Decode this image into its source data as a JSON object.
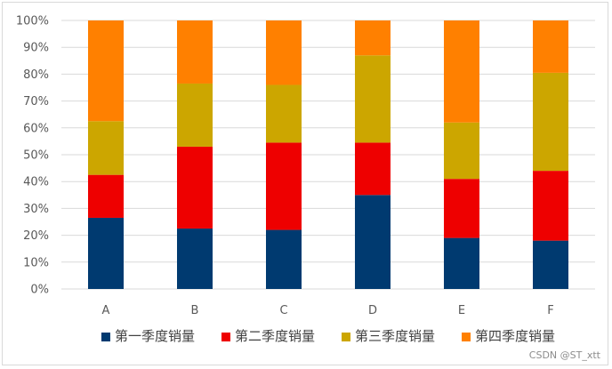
{
  "chart_data": {
    "type": "bar",
    "stacking": "percent",
    "categories": [
      "A",
      "B",
      "C",
      "D",
      "E",
      "F"
    ],
    "series": [
      {
        "name": "第一季度销量",
        "color": "#003a70",
        "values": [
          26.5,
          22.5,
          22.0,
          35.0,
          19.0,
          18.0
        ]
      },
      {
        "name": "第二季度销量",
        "color": "#ee0000",
        "values": [
          16.0,
          30.5,
          32.5,
          19.5,
          22.0,
          26.0
        ]
      },
      {
        "name": "第三季度销量",
        "color": "#cca600",
        "values": [
          20.0,
          23.5,
          21.5,
          32.5,
          21.0,
          36.5
        ]
      },
      {
        "name": "第四季度销量",
        "color": "#ff8000",
        "values": [
          37.5,
          23.5,
          24.0,
          13.0,
          38.0,
          19.5
        ]
      }
    ],
    "y_ticks": [
      "0%",
      "10%",
      "20%",
      "30%",
      "40%",
      "50%",
      "60%",
      "70%",
      "80%",
      "90%",
      "100%"
    ],
    "ylim": [
      0,
      100
    ],
    "grid": true,
    "legend_position": "bottom",
    "gridline_color": "#d9d9d9",
    "tick_label_color": "#595959"
  },
  "watermark": "CSDN @ST_xtt"
}
